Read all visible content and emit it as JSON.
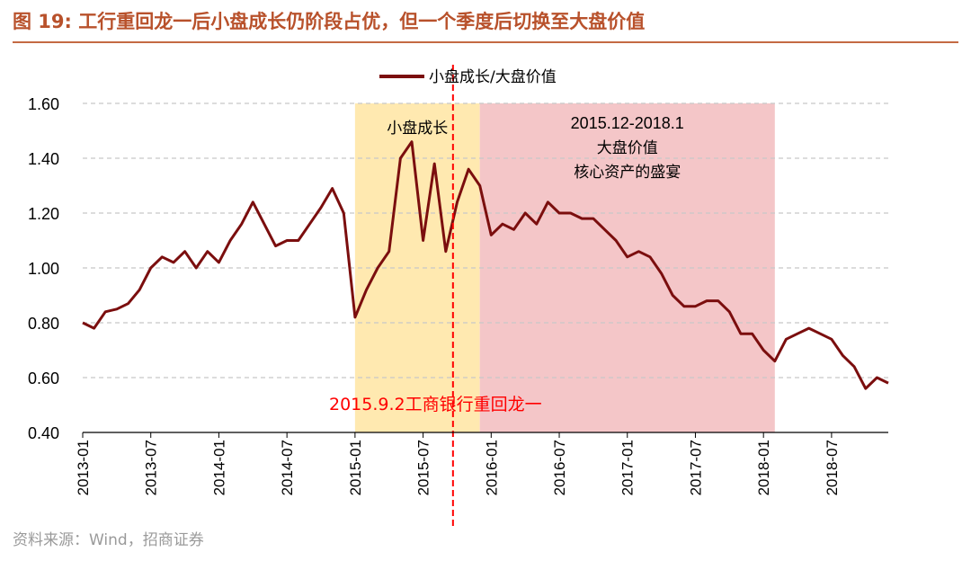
{
  "header": {
    "title": "图 19:  工行重回龙一后小盘成长仍阶段占优，但一个季度后切换至大盘价值"
  },
  "footer": {
    "source": "资料来源：Wind，招商证券"
  },
  "chart_data": {
    "type": "line",
    "title": "",
    "xlabel": "",
    "ylabel": "",
    "ylim": [
      0.4,
      1.6
    ],
    "y_ticks": [
      "1.60",
      "1.40",
      "1.20",
      "1.00",
      "0.80",
      "0.60",
      "0.40"
    ],
    "x_ticks": [
      "2013-01",
      "2013-07",
      "2014-01",
      "2014-07",
      "2015-01",
      "2015-07",
      "2016-01",
      "2016-07",
      "2017-01",
      "2017-07",
      "2018-01",
      "2018-07"
    ],
    "xlim": [
      "2013-01",
      "2018-12"
    ],
    "grid": "horizontal dashed",
    "legend_position": "top-center",
    "series": [
      {
        "name": "小盘成长/大盘价值",
        "color": "#7B0E0E",
        "points": [
          [
            "2013-01",
            0.8
          ],
          [
            "2013-02",
            0.78
          ],
          [
            "2013-03",
            0.84
          ],
          [
            "2013-04",
            0.85
          ],
          [
            "2013-05",
            0.87
          ],
          [
            "2013-06",
            0.92
          ],
          [
            "2013-07",
            1.0
          ],
          [
            "2013-08",
            1.04
          ],
          [
            "2013-09",
            1.02
          ],
          [
            "2013-10",
            1.06
          ],
          [
            "2013-11",
            1.0
          ],
          [
            "2013-12",
            1.06
          ],
          [
            "2014-01",
            1.02
          ],
          [
            "2014-02",
            1.1
          ],
          [
            "2014-03",
            1.16
          ],
          [
            "2014-04",
            1.24
          ],
          [
            "2014-05",
            1.16
          ],
          [
            "2014-06",
            1.08
          ],
          [
            "2014-07",
            1.1
          ],
          [
            "2014-08",
            1.1
          ],
          [
            "2014-09",
            1.16
          ],
          [
            "2014-10",
            1.22
          ],
          [
            "2014-11",
            1.29
          ],
          [
            "2014-12",
            1.2
          ],
          [
            "2015-01",
            0.82
          ],
          [
            "2015-02",
            0.92
          ],
          [
            "2015-03",
            1.0
          ],
          [
            "2015-04",
            1.06
          ],
          [
            "2015-05",
            1.4
          ],
          [
            "2015-06",
            1.46
          ],
          [
            "2015-07",
            1.1
          ],
          [
            "2015-08",
            1.38
          ],
          [
            "2015-09",
            1.06
          ],
          [
            "2015-10",
            1.24
          ],
          [
            "2015-11",
            1.36
          ],
          [
            "2015-12",
            1.3
          ],
          [
            "2016-01",
            1.12
          ],
          [
            "2016-02",
            1.16
          ],
          [
            "2016-03",
            1.14
          ],
          [
            "2016-04",
            1.2
          ],
          [
            "2016-05",
            1.16
          ],
          [
            "2016-06",
            1.24
          ],
          [
            "2016-07",
            1.2
          ],
          [
            "2016-08",
            1.2
          ],
          [
            "2016-09",
            1.18
          ],
          [
            "2016-10",
            1.18
          ],
          [
            "2016-11",
            1.14
          ],
          [
            "2016-12",
            1.1
          ],
          [
            "2017-01",
            1.04
          ],
          [
            "2017-02",
            1.06
          ],
          [
            "2017-03",
            1.04
          ],
          [
            "2017-04",
            0.98
          ],
          [
            "2017-05",
            0.9
          ],
          [
            "2017-06",
            0.86
          ],
          [
            "2017-07",
            0.86
          ],
          [
            "2017-08",
            0.88
          ],
          [
            "2017-09",
            0.88
          ],
          [
            "2017-10",
            0.84
          ],
          [
            "2017-11",
            0.76
          ],
          [
            "2017-12",
            0.76
          ],
          [
            "2018-01",
            0.7
          ],
          [
            "2018-02",
            0.66
          ],
          [
            "2018-03",
            0.74
          ],
          [
            "2018-04",
            0.76
          ],
          [
            "2018-05",
            0.78
          ],
          [
            "2018-06",
            0.76
          ],
          [
            "2018-07",
            0.74
          ],
          [
            "2018-08",
            0.68
          ],
          [
            "2018-09",
            0.64
          ],
          [
            "2018-10",
            0.56
          ],
          [
            "2018-11",
            0.6
          ],
          [
            "2018-12",
            0.58
          ]
        ]
      }
    ],
    "shaded_regions": [
      {
        "label": "小盘成长",
        "start": "2015-01",
        "end": "2015-12",
        "color": "#FFE9B0"
      },
      {
        "label_line1": "2015.12-2018.1",
        "label_line2": "大盘价值",
        "label_line3": "核心资产的盛宴",
        "start": "2015-12",
        "end": "2018-02",
        "color": "#F4C6C8"
      }
    ],
    "event_line": {
      "date": "2015-09",
      "label": "2015.9.2工商银行重回龙一",
      "color": "#ff0000"
    }
  }
}
